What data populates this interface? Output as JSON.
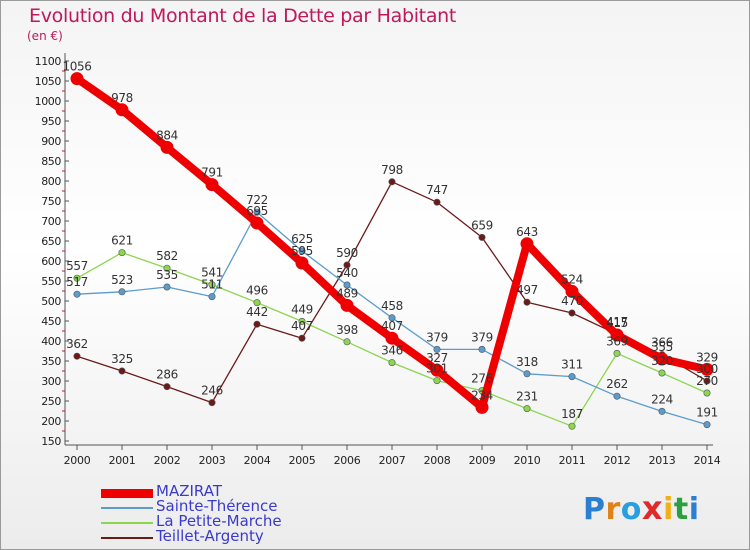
{
  "title": "Evolution du Montant de la Dette par Habitant",
  "subtitle": "(en €)",
  "logo": {
    "letters": [
      "P",
      "r",
      "o",
      "x",
      "i",
      "t",
      "i"
    ],
    "colors": [
      "#2a7fd0",
      "#e0821a",
      "#2a9fe0",
      "#e02a2a",
      "#f0b01a",
      "#2aa040",
      "#2a7fd0"
    ]
  },
  "chart_data": {
    "type": "line",
    "x": [
      "2000",
      "2001",
      "2002",
      "2003",
      "2004",
      "2005",
      "2006",
      "2007",
      "2008",
      "2009",
      "2010",
      "2011",
      "2012",
      "2013",
      "2014"
    ],
    "ylim": [
      150,
      1100
    ],
    "yticks": [
      150,
      200,
      250,
      300,
      350,
      400,
      450,
      500,
      550,
      600,
      650,
      700,
      750,
      800,
      850,
      900,
      950,
      1000,
      1050,
      1100
    ],
    "grid": false,
    "legend_position": "bottom-left",
    "series": [
      {
        "name": "MAZIRAT",
        "color": "#ee0000",
        "values": [
          1056,
          978,
          884,
          791,
          695,
          595,
          489,
          407,
          327,
          234,
          643,
          524,
          415,
          355,
          329
        ]
      },
      {
        "name": "Sainte-Thérence",
        "color": "#5b9ccc",
        "values": [
          517,
          523,
          535,
          511,
          722,
          625,
          540,
          458,
          379,
          379,
          318,
          311,
          262,
          224,
          191
        ]
      },
      {
        "name": "La Petite-Marche",
        "color": "#8cd652",
        "values": [
          557,
          621,
          582,
          541,
          496,
          449,
          398,
          346,
          301,
          276,
          231,
          187,
          369,
          320,
          270
        ]
      },
      {
        "name": "Teillet-Argenty",
        "color": "#6b1a1a",
        "values": [
          362,
          325,
          286,
          246,
          442,
          407,
          590,
          798,
          747,
          659,
          497,
          470,
          417,
          366,
          300
        ]
      }
    ]
  }
}
